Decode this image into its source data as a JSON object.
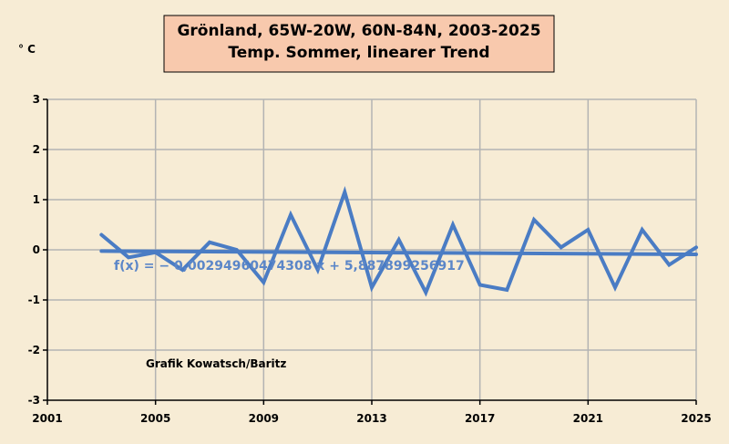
{
  "chart_data": {
    "type": "line",
    "title": "Grönland, 65W-20W, 60N-84N, 2003-2025",
    "subtitle": "Temp. Sommer, linearer Trend",
    "ylabel": "° C",
    "xlabel": "",
    "xlim": [
      2001,
      2025
    ],
    "ylim": [
      -3,
      3
    ],
    "x_ticks": [
      2001,
      2005,
      2009,
      2013,
      2017,
      2021,
      2025
    ],
    "x_tick_labels": [
      "2001",
      "2005",
      "2009",
      "2013",
      "2017",
      "2021",
      "2025"
    ],
    "y_ticks": [
      -3,
      -2,
      -1,
      0,
      1,
      2,
      3
    ],
    "y_tick_labels": [
      "-3",
      "-2",
      "-1",
      "0",
      "1",
      "2",
      "3"
    ],
    "grid": true,
    "series": [
      {
        "color": "#4a7cc4",
        "x": [
          2003,
          2004,
          2005,
          2006,
          2007,
          2008,
          2009,
          2010,
          2011,
          2012,
          2013,
          2014,
          2015,
          2016,
          2017,
          2018,
          2019,
          2020,
          2021,
          2022,
          2023,
          2024,
          2025
        ],
        "values": [
          0.3,
          -0.15,
          -0.05,
          -0.4,
          0.15,
          0.0,
          -0.65,
          0.7,
          -0.4,
          1.15,
          -0.75,
          0.2,
          -0.85,
          0.5,
          -0.7,
          -0.8,
          0.6,
          0.05,
          0.4,
          -0.75,
          0.4,
          -0.3,
          0.05
        ]
      }
    ],
    "trend": {
      "color": "#4a7cc4",
      "x": [
        2003,
        2025
      ],
      "values": [
        -0.025,
        -0.09
      ]
    },
    "annotations": {
      "equation": "f(x) = − 0,00294960474308 x + 5,887899256917",
      "credit": "Grafik Kowatsch/Baritz"
    }
  },
  "colors": {
    "background": "#f7ecd5",
    "plot_background": "#f7ecd5",
    "title_box": "#f8c9ad",
    "grid": "#b3b3b3",
    "line": "#4a7cc4"
  }
}
